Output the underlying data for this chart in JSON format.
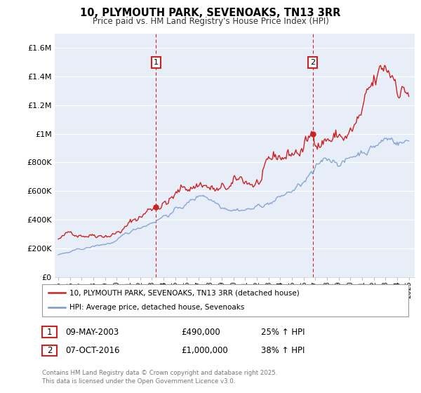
{
  "title1": "10, PLYMOUTH PARK, SEVENOAKS, TN13 3RR",
  "title2": "Price paid vs. HM Land Registry's House Price Index (HPI)",
  "plot_bg": "#e8eef8",
  "line1_color": "#cc2222",
  "line2_color": "#7799cc",
  "marker1_x": 2003.37,
  "marker2_x": 2016.78,
  "marker1_y": 490000,
  "marker2_y": 1000000,
  "annotation1": [
    "1",
    "09-MAY-2003",
    "£490,000",
    "25% ↑ HPI"
  ],
  "annotation2": [
    "2",
    "07-OCT-2016",
    "£1,000,000",
    "38% ↑ HPI"
  ],
  "legend1": "10, PLYMOUTH PARK, SEVENOAKS, TN13 3RR (detached house)",
  "legend2": "HPI: Average price, detached house, Sevenoaks",
  "footer": "Contains HM Land Registry data © Crown copyright and database right 2025.\nThis data is licensed under the Open Government Licence v3.0.",
  "ylim": [
    0,
    1700000
  ],
  "yticks": [
    0,
    200000,
    400000,
    600000,
    800000,
    1000000,
    1200000,
    1400000,
    1600000
  ],
  "ytick_labels": [
    "£0",
    "£200K",
    "£400K",
    "£600K",
    "£800K",
    "£1M",
    "£1.2M",
    "£1.4M",
    "£1.6M"
  ],
  "xlim": [
    1994.7,
    2025.5
  ]
}
